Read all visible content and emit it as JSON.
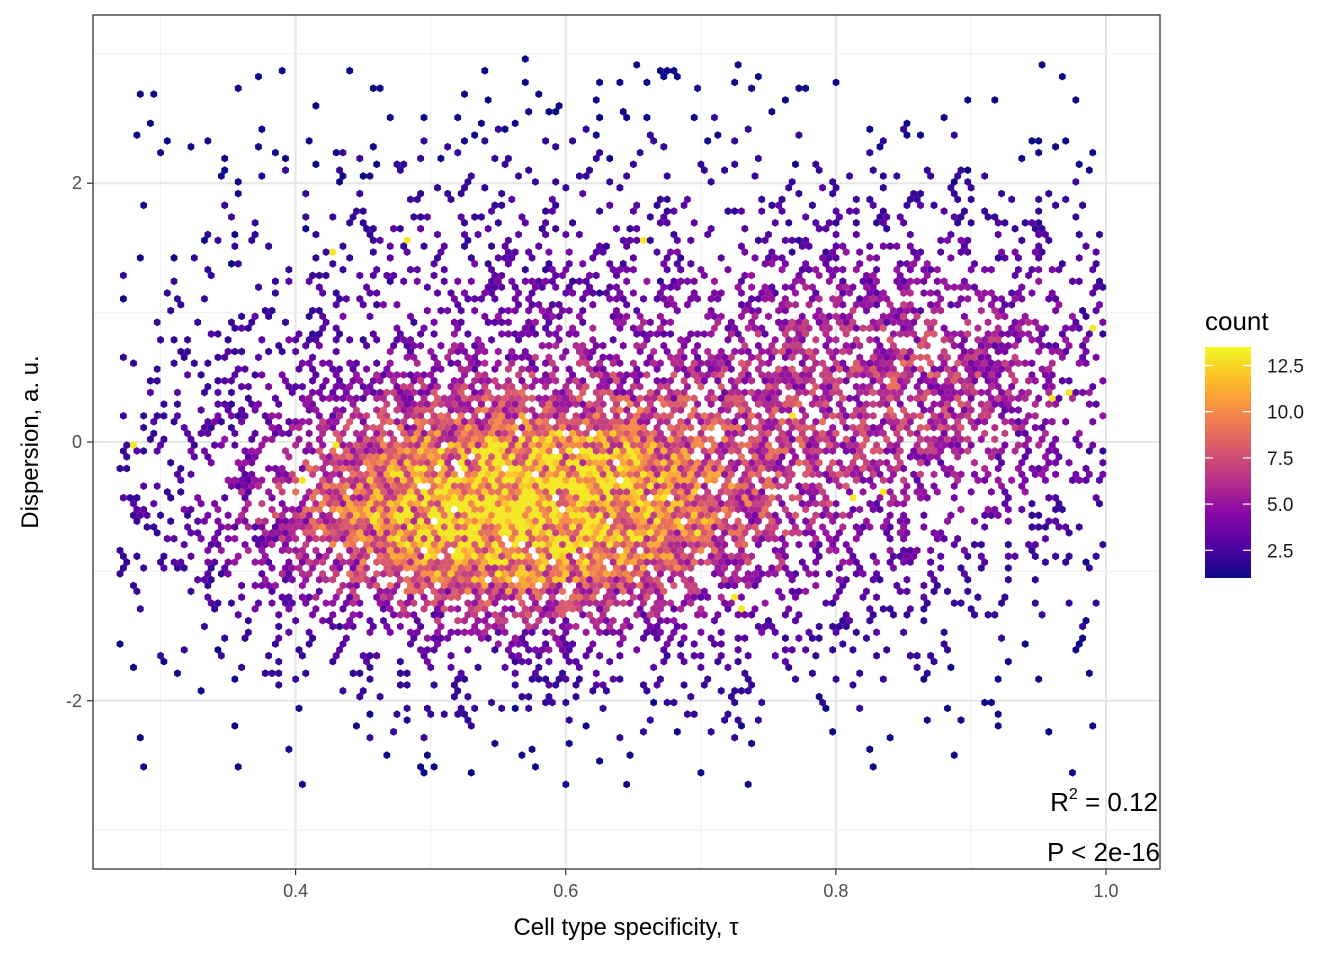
{
  "chart_data": {
    "type": "heatmap",
    "subtype": "hexbin",
    "title": "",
    "xlabel": "Cell type specificity, τ",
    "ylabel": "Dispersion, a. u.",
    "xlim": [
      0.25,
      1.04
    ],
    "ylim": [
      -3.3,
      3.3
    ],
    "x_ticks": [
      0.4,
      0.6,
      0.8,
      1.0
    ],
    "x_tick_labels": [
      "0.4",
      "0.6",
      "0.8",
      "1.0"
    ],
    "y_ticks": [
      -2,
      0,
      2
    ],
    "y_tick_labels": [
      "-2",
      "0",
      "2"
    ],
    "grid": true,
    "legend": {
      "title": "count",
      "position": "right",
      "range": [
        1,
        13.5
      ],
      "breaks": [
        2.5,
        5.0,
        7.5,
        10.0,
        12.5
      ],
      "break_labels": [
        "2.5",
        "5.0",
        "7.5",
        "10.0",
        "12.5"
      ],
      "colormap": "plasma",
      "colors": [
        "#0d0887",
        "#5302a3",
        "#8b0aa5",
        "#b83289",
        "#db5c68",
        "#f48849",
        "#febd2a",
        "#f0f921"
      ]
    },
    "density_model": {
      "description": "approximate distribution of point density",
      "center": {
        "x": 0.56,
        "y": -0.55
      },
      "peak_count": 13,
      "secondary_region": {
        "x": 0.88,
        "y": 0.5
      }
    },
    "annotations": {
      "r2_prefix": "R",
      "r2_sup": "2",
      "r2_value": " = 0.12",
      "p_value": "P < 2e-16"
    }
  }
}
